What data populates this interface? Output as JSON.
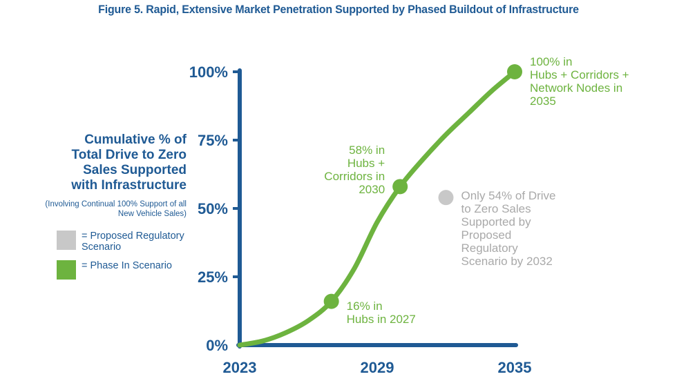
{
  "figure_title": "Figure 5. Rapid, Extensive Market Penetration Supported by Phased Buildout of Infrastructure",
  "y_axis_label_lines": [
    "Cumulative % of",
    "Total Drive to Zero",
    "Sales Supported",
    "with Infrastructure"
  ],
  "y_axis_note": "(Involving Continual 100% Support of all New Vehicle Sales)",
  "legend": [
    {
      "label": "= Proposed Regulatory Scenario",
      "color": "#c8c8c8"
    },
    {
      "label": "= Phase In Scenario",
      "color": "#6db33f"
    }
  ],
  "colors": {
    "axis": "#1f5a94",
    "phase_in": "#6db33f",
    "regulatory": "#c8c8c8"
  },
  "chart_data": {
    "type": "line",
    "title": "Figure 5. Rapid, Extensive Market Penetration Supported by Phased Buildout of Infrastructure",
    "xlim": [
      2023,
      2035
    ],
    "ylim": [
      0,
      100
    ],
    "x_ticks": [
      2023,
      2029,
      2035
    ],
    "y_ticks": [
      0,
      25,
      50,
      75,
      100
    ],
    "y_tick_labels": [
      "0%",
      "25%",
      "50%",
      "75%",
      "100%"
    ],
    "series": [
      {
        "name": "Phase In Scenario",
        "curve": [
          [
            2023,
            0
          ],
          [
            2024,
            1.5
          ],
          [
            2025,
            4.5
          ],
          [
            2026,
            9
          ],
          [
            2027,
            16
          ],
          [
            2028,
            28
          ],
          [
            2029,
            45
          ],
          [
            2030,
            58
          ],
          [
            2031,
            68
          ],
          [
            2032,
            77
          ],
          [
            2033,
            85
          ],
          [
            2034,
            93
          ],
          [
            2035,
            100
          ]
        ],
        "markers": [
          {
            "x": 2027,
            "y": 16,
            "annotation": [
              "16% in",
              "Hubs in 2027"
            ]
          },
          {
            "x": 2030,
            "y": 58,
            "annotation": [
              "58% in",
              "Hubs +",
              "Corridors in",
              "2030"
            ]
          },
          {
            "x": 2035,
            "y": 100,
            "annotation": [
              "100% in",
              "Hubs + Corridors +",
              "Network Nodes in",
              "2035"
            ]
          }
        ]
      },
      {
        "name": "Proposed Regulatory Scenario",
        "markers": [
          {
            "x": 2032,
            "y": 54,
            "annotation": [
              "Only 54% of Drive",
              "to Zero Sales",
              "Supported by",
              "Proposed",
              "Regulatory",
              "Scenario by 2032"
            ]
          }
        ]
      }
    ]
  }
}
